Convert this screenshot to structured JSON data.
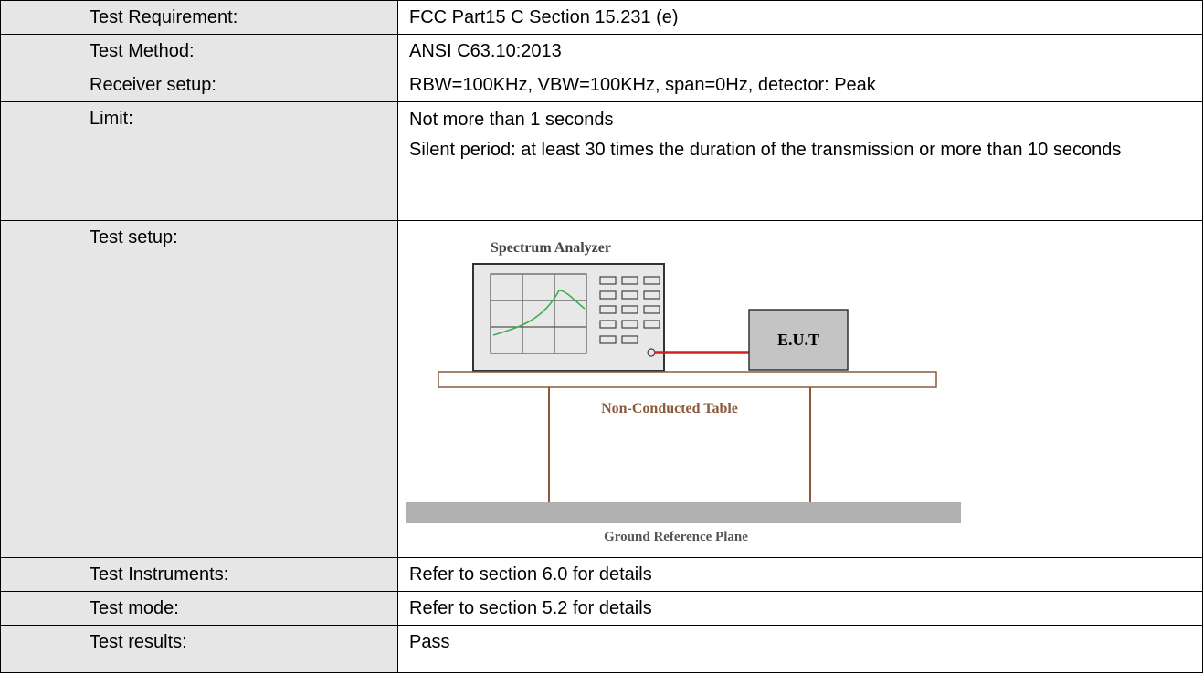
{
  "table": {
    "rows": [
      {
        "label": "Test Requirement:",
        "value": "FCC Part15 C Section 15.231 (e)"
      },
      {
        "label": "Test Method:",
        "value": "ANSI C63.10:2013"
      },
      {
        "label": "Receiver setup:",
        "value": "RBW=100KHz, VBW=100KHz, span=0Hz, detector: Peak"
      },
      {
        "label": "Limit:",
        "lines": [
          "Not more than 1 seconds",
          "Silent period: at least 30 times the duration of the transmission or more than 10 seconds"
        ]
      },
      {
        "label": "Test setup:",
        "diagram": {
          "analyzer": "Spectrum Analyzer",
          "eut": "E.U.T",
          "table": "Non-Conducted Table",
          "ground": "Ground Reference Plane"
        }
      },
      {
        "label": "Test Instruments:",
        "value": "Refer to section 6.0 for details"
      },
      {
        "label": "Test mode:",
        "value": "Refer to section 5.2 for details"
      },
      {
        "label": "Test results:",
        "value": "Pass"
      }
    ]
  }
}
